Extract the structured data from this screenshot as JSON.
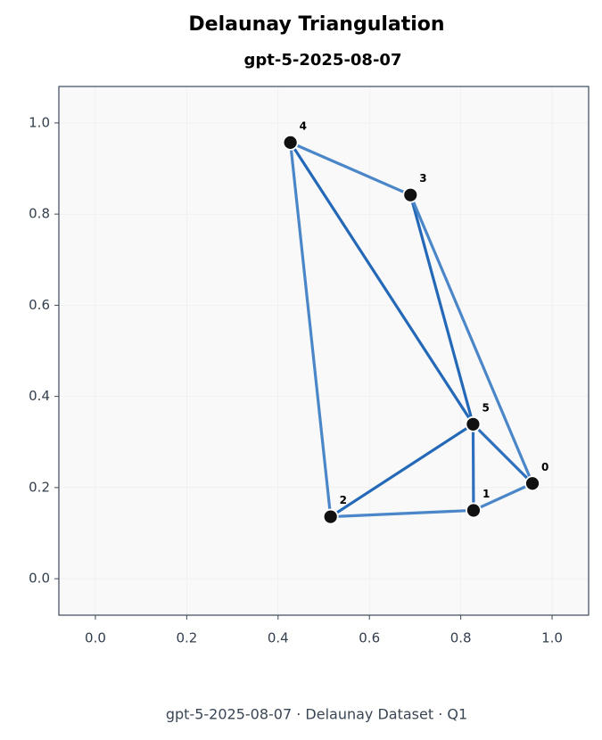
{
  "chart_data": {
    "type": "triangulation",
    "title": "Delaunay Triangulation",
    "subtitle": "gpt-5-2025-08-07",
    "footer": "gpt-5-2025-08-07 · Delaunay Dataset · Q1",
    "labels": [
      "0",
      "1",
      "2",
      "3",
      "4",
      "5"
    ],
    "x": [
      0.957,
      0.828,
      0.515,
      0.69,
      0.427,
      0.827
    ],
    "y": [
      0.209,
      0.15,
      0.136,
      0.842,
      0.957,
      0.339
    ],
    "edges": [
      [
        4,
        3
      ],
      [
        4,
        5
      ],
      [
        4,
        2
      ],
      [
        3,
        5
      ],
      [
        3,
        0
      ],
      [
        5,
        0
      ],
      [
        5,
        1
      ],
      [
        5,
        2
      ],
      [
        2,
        1
      ],
      [
        1,
        0
      ]
    ],
    "edge_colors": [
      "#4a86c8",
      "#2468b8",
      "#4a86c8",
      "#2468b8",
      "#4a86c8",
      "#2f6fbd",
      "#2f6fbd",
      "#2468b8",
      "#4a86c8",
      "#4a86c8"
    ],
    "point_color": "#111111",
    "xlim": [
      -0.08,
      1.08
    ],
    "ylim": [
      -0.08,
      1.08
    ],
    "xticks": [
      {
        "value": 0,
        "label": "0.0"
      },
      0.2,
      0.4,
      0.6,
      0.8,
      {
        "value": 1,
        "label": "1.0"
      }
    ],
    "yticks": [
      {
        "value": 0,
        "label": "0.0"
      },
      0.2,
      0.4,
      0.6,
      0.8,
      {
        "value": 1,
        "label": "1.0"
      }
    ],
    "grid": true
  }
}
